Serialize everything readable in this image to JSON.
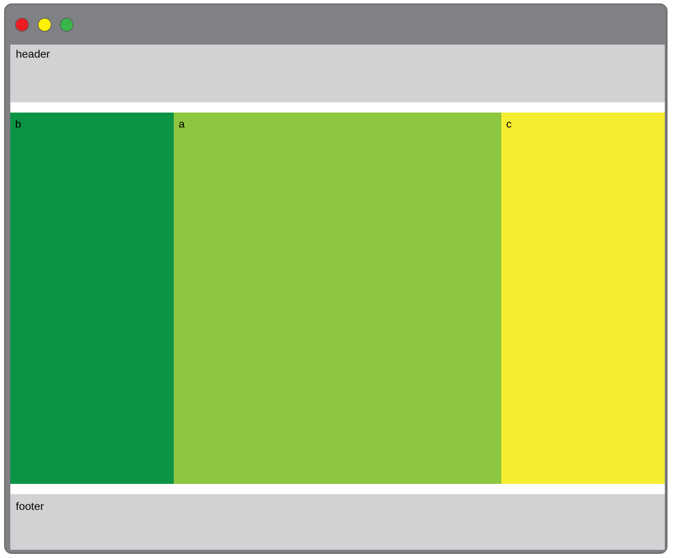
{
  "window": {
    "controls": [
      {
        "name": "close",
        "color": "#ed1c24"
      },
      {
        "name": "minimize",
        "color": "#fff200"
      },
      {
        "name": "zoom",
        "color": "#39b54a"
      }
    ]
  },
  "layout": {
    "header": {
      "label": "header"
    },
    "panels": [
      {
        "id": "b",
        "label": "b",
        "color": "#0b9444"
      },
      {
        "id": "a",
        "label": "a",
        "color": "#8dc63f"
      },
      {
        "id": "c",
        "label": "c",
        "color": "#f5ed30"
      }
    ],
    "footer": {
      "label": "footer"
    }
  }
}
